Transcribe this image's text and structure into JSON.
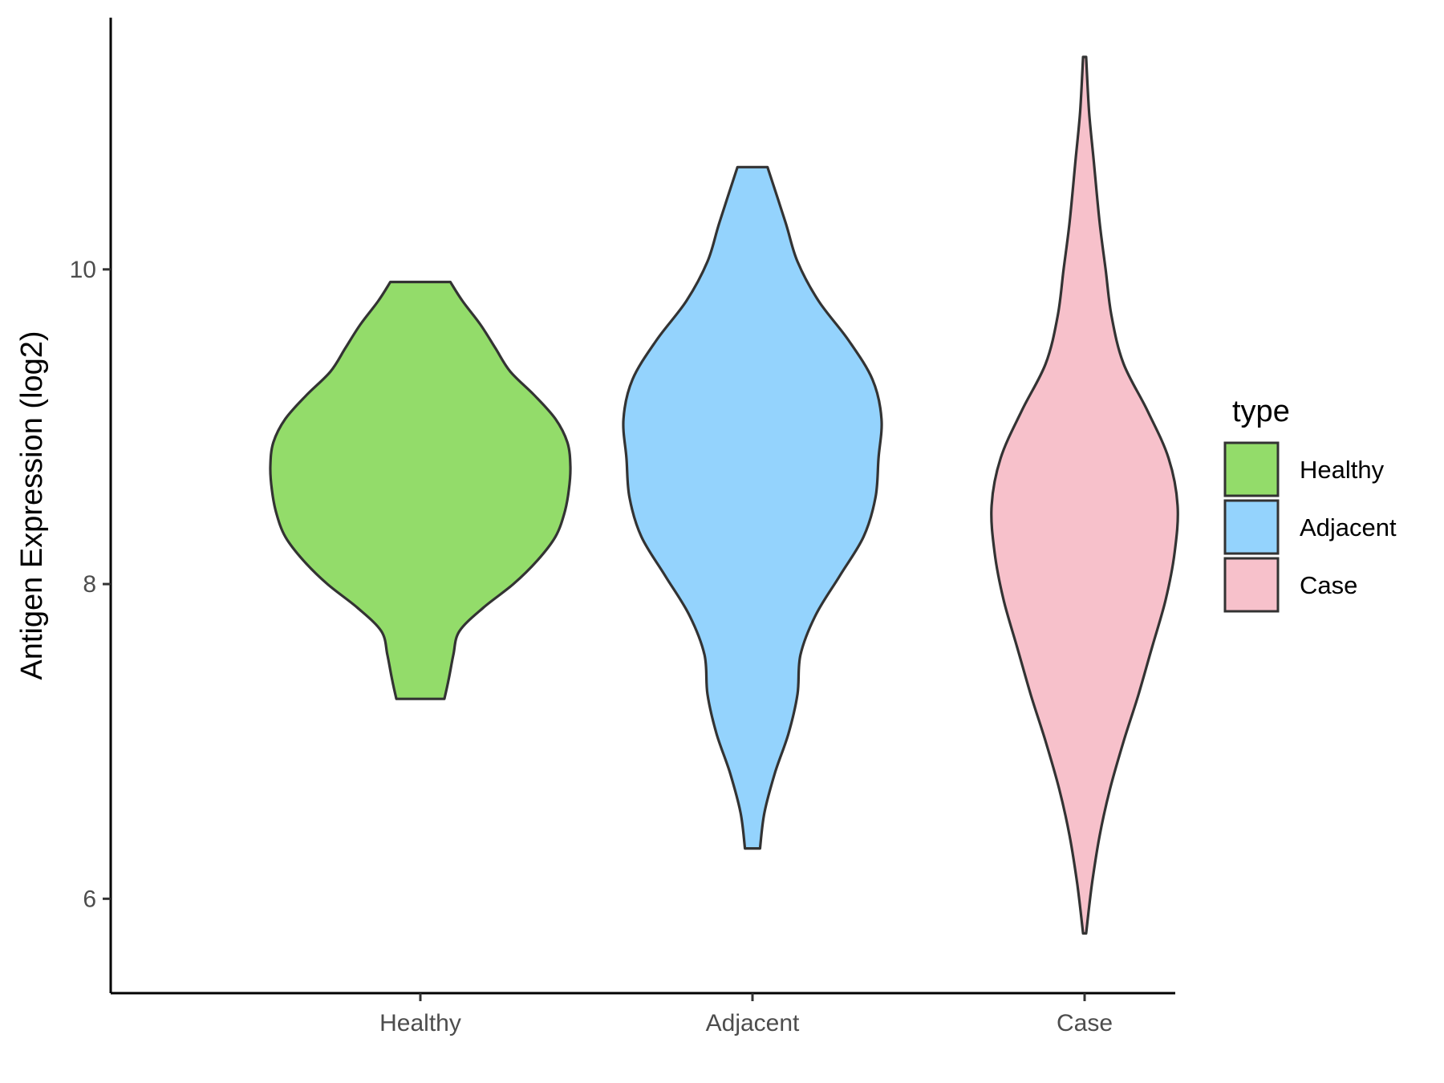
{
  "chart_data": {
    "type": "violin",
    "title": "",
    "xlabel": "",
    "ylabel": "Antigen Expression (log2)",
    "categories": [
      "Healthy",
      "Adjacent",
      "Case"
    ],
    "y_ticks": [
      6,
      8,
      10
    ],
    "ylim": [
      5.4,
      11.6
    ],
    "grid": false,
    "legend": {
      "title": "type",
      "position": "right",
      "entries": [
        "Healthy",
        "Adjacent",
        "Case"
      ]
    },
    "colors": {
      "Healthy": "#93dc6a",
      "Adjacent": "#94d3fd",
      "Case": "#f7c1cb",
      "outline": "#333333"
    },
    "series": [
      {
        "category": "Healthy",
        "min": 7.27,
        "max": 9.92,
        "density_profile": [
          [
            7.27,
            0.16
          ],
          [
            7.4,
            0.19
          ],
          [
            7.55,
            0.22
          ],
          [
            7.7,
            0.26
          ],
          [
            7.85,
            0.42
          ],
          [
            8.0,
            0.62
          ],
          [
            8.15,
            0.78
          ],
          [
            8.3,
            0.9
          ],
          [
            8.45,
            0.96
          ],
          [
            8.6,
            0.99
          ],
          [
            8.75,
            1.0
          ],
          [
            8.9,
            0.98
          ],
          [
            9.05,
            0.9
          ],
          [
            9.2,
            0.76
          ],
          [
            9.35,
            0.6
          ],
          [
            9.5,
            0.5
          ],
          [
            9.65,
            0.4
          ],
          [
            9.8,
            0.28
          ],
          [
            9.92,
            0.2
          ]
        ]
      },
      {
        "category": "Adjacent",
        "min": 6.32,
        "max": 10.65,
        "density_profile": [
          [
            6.32,
            0.05
          ],
          [
            6.55,
            0.08
          ],
          [
            6.8,
            0.15
          ],
          [
            7.05,
            0.24
          ],
          [
            7.3,
            0.3
          ],
          [
            7.55,
            0.32
          ],
          [
            7.8,
            0.42
          ],
          [
            8.05,
            0.58
          ],
          [
            8.3,
            0.74
          ],
          [
            8.55,
            0.82
          ],
          [
            8.8,
            0.84
          ],
          [
            9.05,
            0.86
          ],
          [
            9.3,
            0.8
          ],
          [
            9.55,
            0.64
          ],
          [
            9.8,
            0.44
          ],
          [
            10.05,
            0.3
          ],
          [
            10.3,
            0.22
          ],
          [
            10.65,
            0.1
          ]
        ]
      },
      {
        "category": "Case",
        "min": 5.78,
        "max": 11.35,
        "density_profile": [
          [
            5.78,
            0.01
          ],
          [
            6.1,
            0.05
          ],
          [
            6.4,
            0.1
          ],
          [
            6.7,
            0.17
          ],
          [
            7.0,
            0.26
          ],
          [
            7.3,
            0.36
          ],
          [
            7.6,
            0.45
          ],
          [
            7.9,
            0.54
          ],
          [
            8.2,
            0.6
          ],
          [
            8.5,
            0.62
          ],
          [
            8.8,
            0.56
          ],
          [
            9.1,
            0.42
          ],
          [
            9.4,
            0.26
          ],
          [
            9.7,
            0.18
          ],
          [
            10.0,
            0.14
          ],
          [
            10.3,
            0.1
          ],
          [
            10.7,
            0.06
          ],
          [
            11.0,
            0.03
          ],
          [
            11.35,
            0.01
          ]
        ]
      }
    ]
  }
}
